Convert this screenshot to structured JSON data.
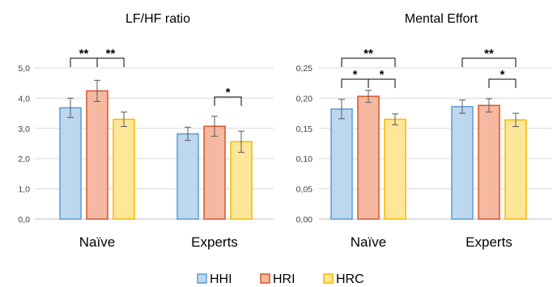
{
  "legend": [
    {
      "name": "HHI",
      "fill": "#BDD7EE",
      "stroke": "#5B9BD5"
    },
    {
      "name": "HRI",
      "fill": "#F4B9A0",
      "stroke": "#D9542A"
    },
    {
      "name": "HRC",
      "fill": "#FFE699",
      "stroke": "#F5B800"
    }
  ],
  "chart_data": [
    {
      "type": "bar",
      "title": "LF/HF ratio",
      "categories": [
        "Naïve",
        "Experts"
      ],
      "series": [
        {
          "name": "HHI",
          "values": [
            3.68,
            2.82
          ],
          "errors": [
            0.32,
            0.22
          ]
        },
        {
          "name": "HRI",
          "values": [
            4.24,
            3.07
          ],
          "errors": [
            0.35,
            0.33
          ]
        },
        {
          "name": "HRC",
          "values": [
            3.3,
            2.56
          ],
          "errors": [
            0.24,
            0.35
          ]
        }
      ],
      "ylim": [
        0,
        5
      ],
      "yticks": [
        "0,0",
        "1,0",
        "2,0",
        "3,0",
        "4,0",
        "5,0"
      ],
      "grid": true,
      "significance": [
        {
          "category": 0,
          "from": 0,
          "to": 1,
          "label": "**",
          "level": 0
        },
        {
          "category": 0,
          "from": 1,
          "to": 2,
          "label": "**",
          "level": 0
        },
        {
          "category": 1,
          "from": 1,
          "to": 2,
          "label": "*",
          "level": 0
        }
      ]
    },
    {
      "type": "bar",
      "title": "Mental Effort",
      "categories": [
        "Naïve",
        "Experts"
      ],
      "series": [
        {
          "name": "HHI",
          "values": [
            0.182,
            0.186
          ],
          "errors": [
            0.016,
            0.011
          ]
        },
        {
          "name": "HRI",
          "values": [
            0.203,
            0.188
          ],
          "errors": [
            0.01,
            0.011
          ]
        },
        {
          "name": "HRC",
          "values": [
            0.165,
            0.164
          ],
          "errors": [
            0.009,
            0.011
          ]
        }
      ],
      "ylim": [
        0,
        0.25
      ],
      "yticks": [
        "0,00",
        "0,05",
        "0,10",
        "0,15",
        "0,20",
        "0,25"
      ],
      "grid": true,
      "significance": [
        {
          "category": 0,
          "from": 0,
          "to": 1,
          "label": "*",
          "level": 0
        },
        {
          "category": 0,
          "from": 1,
          "to": 2,
          "label": "*",
          "level": 0
        },
        {
          "category": 0,
          "from": 0,
          "to": 2,
          "label": "**",
          "level": 1
        },
        {
          "category": 1,
          "from": 1,
          "to": 2,
          "label": "*",
          "level": 0
        },
        {
          "category": 1,
          "from": 0,
          "to": 2,
          "label": "**",
          "level": 1
        }
      ]
    }
  ]
}
